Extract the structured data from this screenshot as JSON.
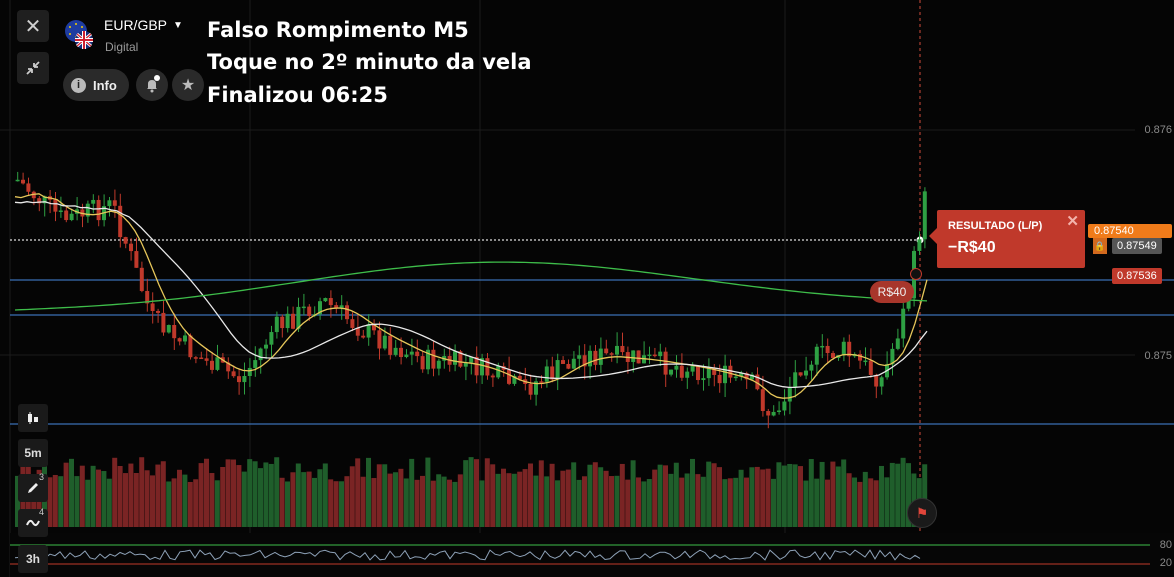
{
  "asset": {
    "name": "EUR/GBP",
    "type": "Digital"
  },
  "buttons": {
    "info": "Info"
  },
  "overlay": {
    "line1": "Falso Rompimento M5",
    "line2": "Toque no 2º minuto da vela",
    "line3": "Finalizou 06:25"
  },
  "price_axis": {
    "top": "0.876",
    "mid": "0.875",
    "current": "0.87549",
    "marker": "0.87536",
    "partial": "0.87540"
  },
  "result": {
    "title": "RESULTADO (L/P)",
    "value": "−R$40"
  },
  "trade_tag": "R$40",
  "timeframes": {
    "candle": "5m",
    "range": "3h"
  },
  "tool_badges": {
    "draw": "3",
    "indicators": "4"
  },
  "oscillator_levels": {
    "upper": "80",
    "lower": "20"
  },
  "colors": {
    "bull": "#2ea043",
    "bear": "#c0392b",
    "volume_bull": "#1f5e2b",
    "volume_bear": "#7a2424",
    "ma_fast": "#e6c65a",
    "ma_mid": "#e8e8e8",
    "ma_slow": "#3ebd4a",
    "level_line": "#3b6fb3",
    "result_panel": "#c0392b",
    "accent_orange": "#f07b1a"
  }
}
